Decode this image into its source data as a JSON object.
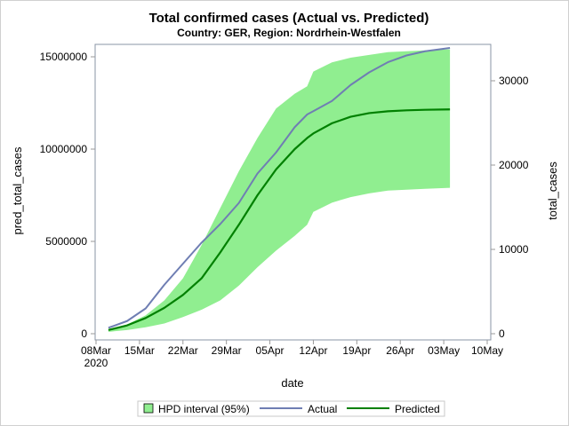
{
  "chart_data": {
    "type": "line",
    "title": "Total confirmed cases (Actual vs. Predicted)",
    "subtitle": "Country: GER, Region: Nordrhein-Westfalen",
    "xlabel": "date",
    "ylabel": "pred_total_cases",
    "y2label": "total_cases",
    "xlim": [
      "2020-03-08",
      "2020-05-10"
    ],
    "ylim": [
      0,
      16000000
    ],
    "y2lim": [
      0,
      31500
    ],
    "x_ticks": [
      {
        "date": "2020-03-08",
        "label": "08Mar",
        "sub": "2020"
      },
      {
        "date": "2020-03-15",
        "label": "15Mar"
      },
      {
        "date": "2020-03-22",
        "label": "22Mar"
      },
      {
        "date": "2020-03-29",
        "label": "29Mar"
      },
      {
        "date": "2020-04-05",
        "label": "05Apr"
      },
      {
        "date": "2020-04-12",
        "label": "12Apr"
      },
      {
        "date": "2020-04-19",
        "label": "19Apr"
      },
      {
        "date": "2020-04-26",
        "label": "26Apr"
      },
      {
        "date": "2020-05-03",
        "label": "03May"
      },
      {
        "date": "2020-05-10",
        "label": "10May"
      }
    ],
    "y_ticks": [
      0,
      5000000,
      10000000,
      15000000
    ],
    "y2_ticks": [
      0,
      10000,
      20000,
      30000
    ],
    "grid": false,
    "legend_position": "bottom",
    "x": [
      "2020-03-10",
      "2020-03-13",
      "2020-03-16",
      "2020-03-19",
      "2020-03-22",
      "2020-03-25",
      "2020-03-28",
      "2020-03-31",
      "2020-04-03",
      "2020-04-06",
      "2020-04-09",
      "2020-04-11",
      "2020-04-12",
      "2020-04-15",
      "2020-04-18",
      "2020-04-21",
      "2020-04-24",
      "2020-04-27",
      "2020-04-30",
      "2020-05-04"
    ],
    "band": {
      "name": "HPD interval (95%)",
      "color": "#90EE90",
      "axis": "left",
      "upper": [
        250000,
        500000,
        1000000,
        1800000,
        3000000,
        4800000,
        6800000,
        8800000,
        10600000,
        12200000,
        13000000,
        13400000,
        14200000,
        14700000,
        14950000,
        15100000,
        15250000,
        15300000,
        15350000,
        15400000
      ],
      "lower": [
        100000,
        200000,
        350000,
        550000,
        900000,
        1300000,
        1800000,
        2600000,
        3600000,
        4500000,
        5300000,
        5900000,
        6600000,
        7100000,
        7400000,
        7600000,
        7750000,
        7800000,
        7850000,
        7900000
      ]
    },
    "series": [
      {
        "name": "Actual",
        "color": "#6f7eb3",
        "axis": "right",
        "values": [
          700,
          1500,
          3000,
          5800,
          8300,
          10800,
          13000,
          15500,
          19000,
          21500,
          24500,
          26000,
          26400,
          27600,
          29500,
          31000,
          32200,
          33000,
          33500,
          33900
        ]
      },
      {
        "name": "Predicted",
        "color": "#008000",
        "axis": "left",
        "values": [
          200000,
          450000,
          850000,
          1400000,
          2100000,
          3000000,
          4400000,
          5900000,
          7500000,
          8900000,
          10000000,
          10600000,
          10850000,
          11400000,
          11750000,
          11950000,
          12050000,
          12100000,
          12130000,
          12150000
        ]
      }
    ]
  }
}
